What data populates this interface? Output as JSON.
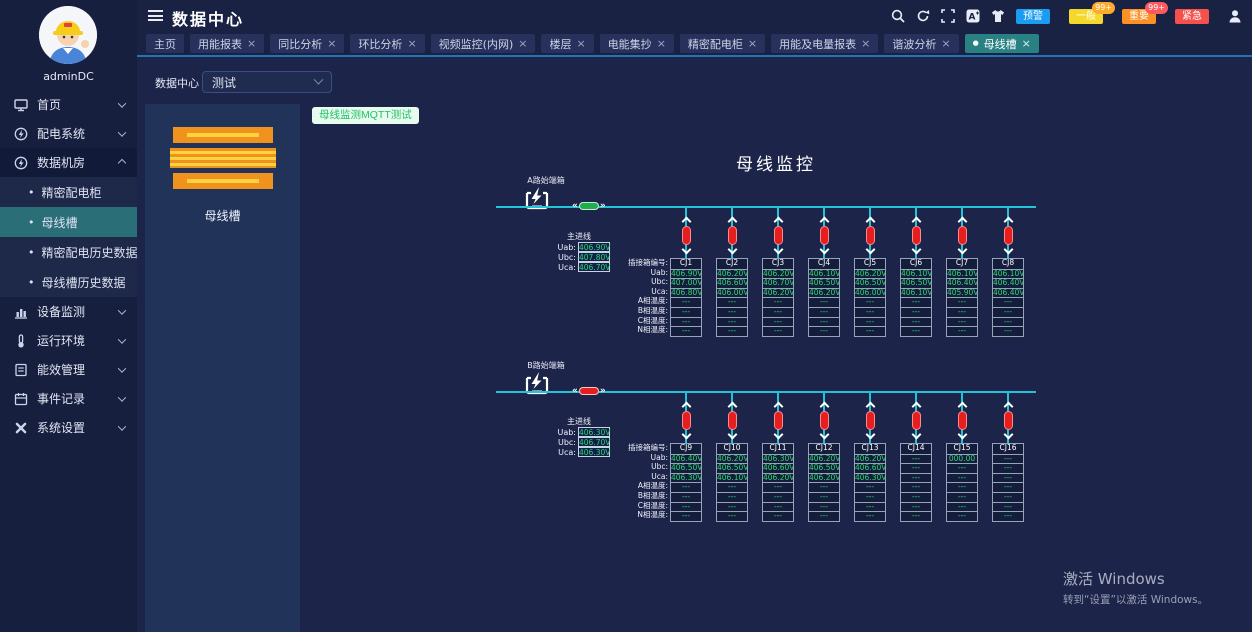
{
  "glyphs": {
    "close": "×",
    "dot": "●",
    "bullet": "•",
    "laquo": "«",
    "raquo": "»"
  },
  "colors": {
    "accent_teal": "#2a8184",
    "line_cyan": "#24c4d8",
    "value_green": "#2bd56e",
    "connector_red": "#e51f1f",
    "connector_green": "#1fae4e",
    "panel_bg": "#213358"
  },
  "sidebar": {
    "username": "adminDC",
    "items": [
      {
        "key": "home",
        "icon": "monitor",
        "label": "首页",
        "chevron": "down"
      },
      {
        "key": "power-distribution",
        "icon": "power",
        "label": "配电系统",
        "chevron": "down"
      },
      {
        "key": "data-room",
        "icon": "power",
        "label": "数据机房",
        "chevron": "up",
        "expanded": true,
        "children": [
          {
            "key": "precision-cabinet",
            "label": "精密配电柜"
          },
          {
            "key": "busway",
            "label": "母线槽",
            "active": true
          },
          {
            "key": "precision-history",
            "label": "精密配电历史数据"
          },
          {
            "key": "busway-history",
            "label": "母线槽历史数据"
          }
        ]
      },
      {
        "key": "device-monitor",
        "icon": "chart",
        "label": "设备监测",
        "chevron": "down"
      },
      {
        "key": "environment",
        "icon": "environment",
        "label": "运行环境",
        "chevron": "down"
      },
      {
        "key": "energy",
        "icon": "energy",
        "label": "能效管理",
        "chevron": "down"
      },
      {
        "key": "events",
        "icon": "events",
        "label": "事件记录",
        "chevron": "down"
      },
      {
        "key": "settings",
        "icon": "settings",
        "label": "系统设置",
        "chevron": "down"
      }
    ]
  },
  "header": {
    "title": "数据中心",
    "icons": [
      "search",
      "refresh",
      "fullscreen",
      "translate",
      "theme"
    ],
    "alarm_buttons": [
      {
        "key": "warning",
        "label": "预警",
        "color": "#1a9cf0",
        "badge": null,
        "badge_color": null
      },
      {
        "key": "general",
        "label": "一般",
        "color": "#f5d82c",
        "badge": "99+",
        "badge_color": "#ffaa2b"
      },
      {
        "key": "important",
        "label": "重要",
        "color": "#fb9124",
        "badge": "99+",
        "badge_color": "#fc5a5e"
      },
      {
        "key": "urgent",
        "label": "紧急",
        "color": "#f4504c",
        "badge": null,
        "badge_color": null
      }
    ]
  },
  "tabs": [
    {
      "key": "home",
      "label": "主页",
      "closable": false,
      "active": false
    },
    {
      "key": "energy-report",
      "label": "用能报表",
      "closable": true,
      "active": false
    },
    {
      "key": "yoy-analysis",
      "label": "同比分析",
      "closable": true,
      "active": false
    },
    {
      "key": "mom-analysis",
      "label": "环比分析",
      "closable": true,
      "active": false
    },
    {
      "key": "video-monitor",
      "label": "视频监控(内网)",
      "closable": true,
      "active": false
    },
    {
      "key": "floor",
      "label": "楼层",
      "closable": true,
      "active": false
    },
    {
      "key": "meter-reading",
      "label": "电能集抄",
      "closable": true,
      "active": false
    },
    {
      "key": "precision-cabinet",
      "label": "精密配电柜",
      "closable": true,
      "active": false
    },
    {
      "key": "energy-power-report",
      "label": "用能及电量报表",
      "closable": true,
      "active": false
    },
    {
      "key": "harmonic-analysis",
      "label": "谐波分析",
      "closable": true,
      "active": false
    },
    {
      "key": "busway",
      "label": "母线槽",
      "closable": true,
      "active": true
    }
  ],
  "toolbar": {
    "select_label": "数据中心",
    "select_value": "测试"
  },
  "device_panel": {
    "label": "母线槽"
  },
  "mqtt_button": "母线监测MQTT测试",
  "main": {
    "title": "母线监控",
    "incoming_label": "主进线",
    "incoming_rows": [
      "Uab:",
      "Ubc:",
      "Uca:"
    ],
    "row_labels": [
      "插接箱编号:",
      "Uab:",
      "Ubc:",
      "Uca:",
      "A相温度:",
      "B相温度:",
      "C相温度:",
      "N相温度:"
    ],
    "sections": [
      {
        "key": "a",
        "name": "A路始端箱",
        "connector_color": "#1fae4e",
        "incoming": [
          "406.90V",
          "407.80V",
          "406.70V"
        ],
        "boxes": [
          {
            "id": "CJ1",
            "values": [
              "406.90V",
              "407.00V",
              "406.80V",
              "---",
              "---",
              "---",
              "---"
            ]
          },
          {
            "id": "CJ2",
            "values": [
              "406.20V",
              "406.60V",
              "406.00V",
              "---",
              "---",
              "---",
              "---"
            ]
          },
          {
            "id": "CJ3",
            "values": [
              "406.20V",
              "406.70V",
              "406.20V",
              "---",
              "---",
              "---",
              "---"
            ]
          },
          {
            "id": "CJ4",
            "values": [
              "406.10V",
              "406.50V",
              "406.20V",
              "---",
              "---",
              "---",
              "---"
            ]
          },
          {
            "id": "CJ5",
            "values": [
              "406.20V",
              "406.50V",
              "406.00V",
              "---",
              "---",
              "---",
              "---"
            ]
          },
          {
            "id": "CJ6",
            "values": [
              "406.10V",
              "406.50V",
              "406.10V",
              "---",
              "---",
              "---",
              "---"
            ]
          },
          {
            "id": "CJ7",
            "values": [
              "406.10V",
              "406.40V",
              "405.90V",
              "---",
              "---",
              "---",
              "---"
            ]
          },
          {
            "id": "CJ8",
            "values": [
              "406.10V",
              "406.40V",
              "406.40V",
              "---",
              "---",
              "---",
              "---"
            ]
          }
        ]
      },
      {
        "key": "b",
        "name": "B路始端箱",
        "connector_color": "#e51f1f",
        "incoming": [
          "406.30V",
          "406.70V",
          "406.30V"
        ],
        "boxes": [
          {
            "id": "CJ9",
            "values": [
              "406.40V",
              "406.50V",
              "406.30V",
              "---",
              "---",
              "---",
              "---"
            ]
          },
          {
            "id": "CJ10",
            "values": [
              "406.20V",
              "406.50V",
              "406.10V",
              "---",
              "---",
              "---",
              "---"
            ]
          },
          {
            "id": "CJ11",
            "values": [
              "406.30V",
              "406.60V",
              "406.20V",
              "---",
              "---",
              "---",
              "---"
            ]
          },
          {
            "id": "CJ12",
            "values": [
              "406.20V",
              "406.50V",
              "406.20V",
              "---",
              "---",
              "---",
              "---"
            ]
          },
          {
            "id": "CJ13",
            "values": [
              "406.20V",
              "406.60V",
              "406.30V",
              "---",
              "---",
              "---",
              "---"
            ]
          },
          {
            "id": "CJ14",
            "values": [
              "---",
              "---",
              "---",
              "---",
              "---",
              "---",
              "---"
            ]
          },
          {
            "id": "CJ15",
            "values": [
              "000.00",
              "---",
              "---",
              "---",
              "---",
              "---",
              "---"
            ]
          },
          {
            "id": "CJ16",
            "values": [
              "---",
              "---",
              "---",
              "---",
              "---",
              "---",
              "---"
            ]
          }
        ]
      }
    ]
  },
  "windows": {
    "title": "激活 Windows",
    "subtitle": "转到“设置”以激活 Windows。"
  }
}
